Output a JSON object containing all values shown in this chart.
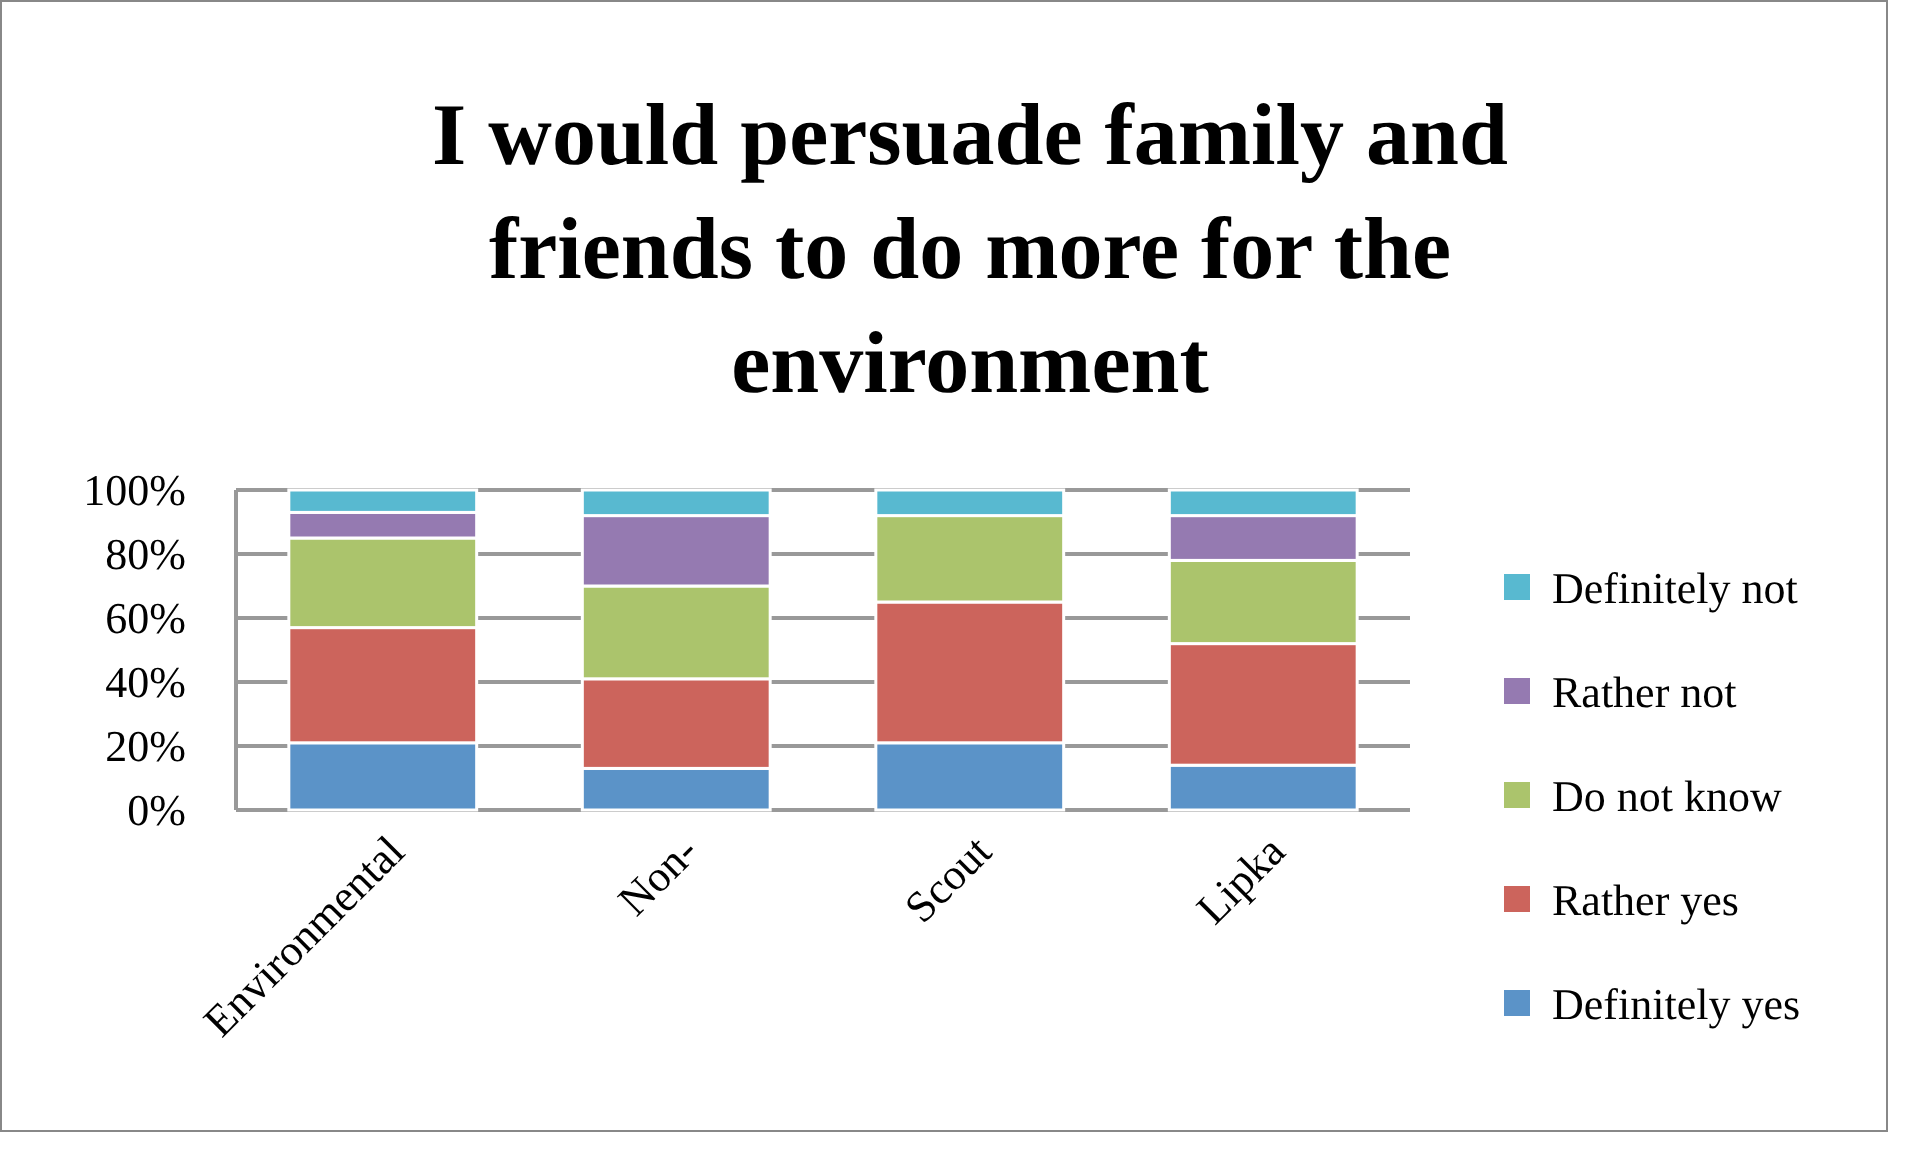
{
  "chart_data": {
    "type": "bar",
    "stacked": true,
    "title": "I would persuade family and friends to do more for the environment",
    "categories": [
      "Environmental",
      "Non-",
      "Scout",
      "Lipka"
    ],
    "series": [
      {
        "name": "Definitely yes",
        "color": "#5b93c8",
        "values": [
          21,
          13,
          21,
          14
        ]
      },
      {
        "name": "Rather yes",
        "color": "#cc645c",
        "values": [
          36,
          28,
          44,
          38
        ]
      },
      {
        "name": "Do not know",
        "color": "#abc46c",
        "values": [
          28,
          29,
          27,
          26
        ]
      },
      {
        "name": "Rather not",
        "color": "#957ab1",
        "values": [
          8,
          22,
          0,
          14
        ]
      },
      {
        "name": "Definitely not",
        "color": "#58b9d0",
        "values": [
          7,
          8,
          8,
          8
        ]
      }
    ],
    "ylim": [
      0,
      100
    ],
    "yticks": [
      {
        "value": 0,
        "label": "0%"
      },
      {
        "value": 20,
        "label": "20%"
      },
      {
        "value": 40,
        "label": "40%"
      },
      {
        "value": 60,
        "label": "60%"
      },
      {
        "value": 80,
        "label": "80%"
      },
      {
        "value": 100,
        "label": "100%"
      }
    ],
    "grid": "y",
    "legend": "right"
  }
}
